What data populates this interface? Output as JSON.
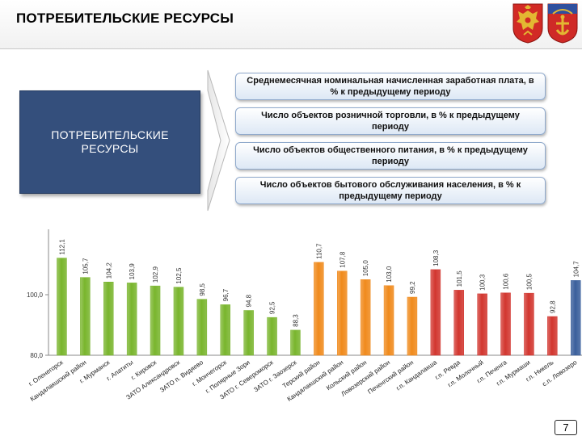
{
  "header": {
    "title": "ПОТРЕБИТЕЛЬСКИЕ РЕСУРСЫ"
  },
  "emblems": [
    "coat-of-arms-russia",
    "coat-of-arms-murmansk-region"
  ],
  "left_box": {
    "line1": "ПОТРЕБИТЕЛЬСКИЕ",
    "line2": "РЕСУРСЫ"
  },
  "indicators": [
    {
      "label": "Среднемесячная номинальная начисленная заработная плата, в % к предыдущему периоду"
    },
    {
      "label": "Число объектов розничной торговли, в % к предыдущему периоду"
    },
    {
      "label": "Число объектов общественного питания, в % к предыдущему периоду"
    },
    {
      "label": "Число объектов бытового обслуживания населения, в % к предыдущему периоду"
    }
  ],
  "chart_data": {
    "type": "bar",
    "categories": [
      "г. Оленегорск",
      "Кандалакшский район",
      "г. Мурманск",
      "г. Апатиты",
      "г. Кировск",
      "ЗАТО Александровск",
      "ЗАТО п. Видяево",
      "г. Мончегорск",
      "г. Полярные Зори",
      "ЗАТО г. Североморск",
      "ЗАТО г. Заозерск",
      "Терский район",
      "Кандалакшский район",
      "Кольский район",
      "Ловозерский район",
      "Печенгский район",
      "г.п. Кандалакша",
      "г.п. Ревда",
      "г.п. Молочный",
      "г.п. Печенга",
      "г.п. Мурмаши",
      "г.п. Никель",
      "с.п. Ловозеро"
    ],
    "values": [
      112.1,
      105.7,
      104.2,
      103.9,
      102.9,
      102.5,
      98.5,
      96.7,
      94.8,
      92.5,
      88.3,
      110.7,
      107.8,
      105.0,
      103.0,
      99.2,
      108.3,
      101.5,
      100.3,
      100.6,
      100.5,
      92.8,
      104.7
    ],
    "value_labels": [
      "112,1",
      "105,7",
      "104,2",
      "103,9",
      "102,9",
      "102,5",
      "98,5",
      "96,7",
      "94,8",
      "92,5",
      "88,3",
      "110,7",
      "107,8",
      "105,0",
      "103,0",
      "99,2",
      "108,3",
      "101,5",
      "100,3",
      "100,6",
      "100,5",
      "92,8",
      "104,7"
    ],
    "colors": [
      "#79b52d",
      "#79b52d",
      "#79b52d",
      "#79b52d",
      "#79b52d",
      "#79b52d",
      "#79b52d",
      "#79b52d",
      "#79b52d",
      "#79b52d",
      "#79b52d",
      "#f08a1c",
      "#f08a1c",
      "#f08a1c",
      "#f08a1c",
      "#f08a1c",
      "#d2362f",
      "#d2362f",
      "#d2362f",
      "#d2362f",
      "#d2362f",
      "#d2362f",
      "#3a5f9c"
    ],
    "ylim": [
      80,
      120
    ],
    "yticks": [
      80,
      100
    ],
    "ytick_labels": [
      "80,0",
      "100,0"
    ],
    "grid": false,
    "legend": "none"
  },
  "page_number": "7"
}
